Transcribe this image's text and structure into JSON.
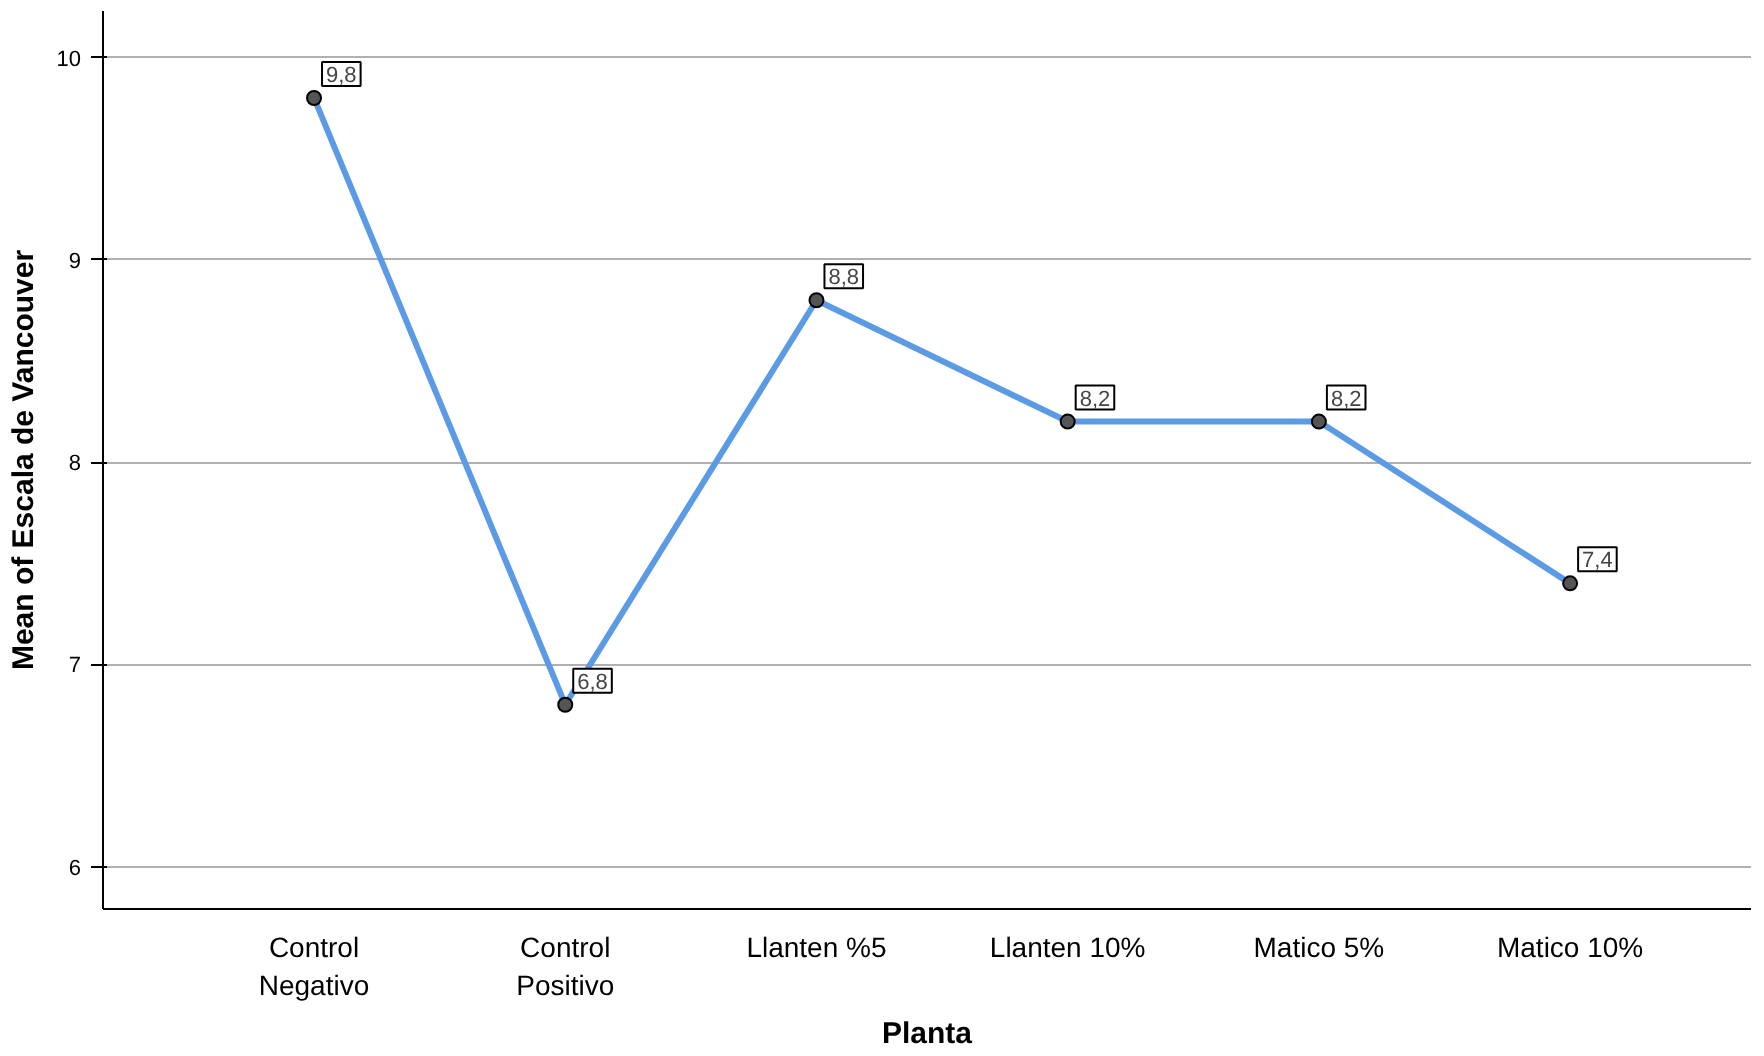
{
  "chart_data": {
    "type": "line",
    "xlabel": "Planta",
    "ylabel": "Mean of Escala de Vancouver",
    "categories": [
      "Control\nNegativo",
      "Control\nPositivo",
      "Llanten %5",
      "Llanten 10%",
      "Matico 5%",
      "Matico 10%"
    ],
    "series": [
      {
        "color": "#5b9be6",
        "values": [
          9.8,
          6.8,
          8.8,
          8.2,
          8.2,
          7.4
        ],
        "value_labels": [
          "9,8",
          "6,8",
          "8,8",
          "8,2",
          "8,2",
          "7,4"
        ]
      }
    ],
    "ylim": [
      5.79,
      10.23
    ],
    "yticks": [
      6,
      7,
      8,
      9,
      10
    ],
    "grid": "y",
    "marker": "circle",
    "line_style": "solid"
  }
}
